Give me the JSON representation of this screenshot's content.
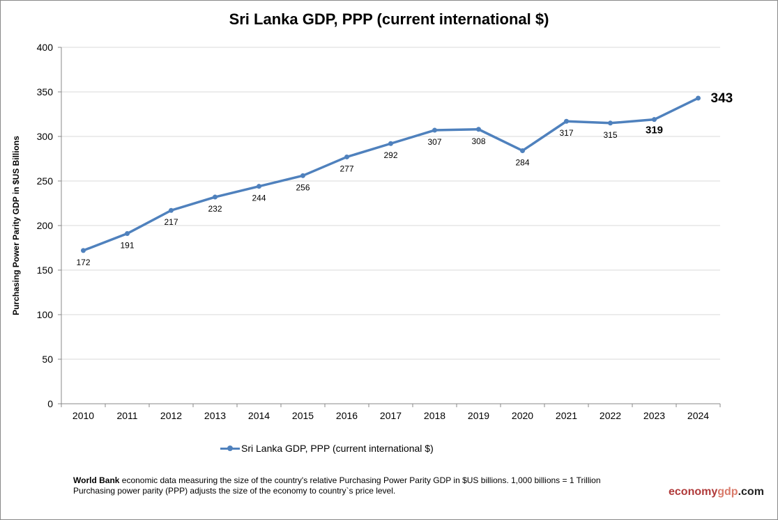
{
  "chart_data": {
    "type": "line",
    "title": "Sri Lanka GDP, PPP (current international $)",
    "ylabel": "Purchasing Power Parity GDP in $US Billions",
    "xlabel": "",
    "categories": [
      "2010",
      "2011",
      "2012",
      "2013",
      "2014",
      "2015",
      "2016",
      "2017",
      "2018",
      "2019",
      "2020",
      "2021",
      "2022",
      "2023",
      "2024"
    ],
    "series": [
      {
        "name": "Sri Lanka GDP, PPP (current international $)",
        "values": [
          172,
          191,
          217,
          232,
          244,
          256,
          277,
          292,
          307,
          308,
          284,
          317,
          315,
          319,
          343
        ],
        "color": "#4f81bd"
      }
    ],
    "ylim": [
      0,
      400
    ],
    "yticks": [
      0,
      50,
      100,
      150,
      200,
      250,
      300,
      350,
      400
    ],
    "grid": true,
    "legend": "bottom"
  },
  "footer": {
    "note_bold": "World Bank",
    "note_line1": " economic data  measuring the size of the country's relative  Purchasing Power Parity GDP in $US billions. 1,000 billions = 1 Trillion",
    "note_line2": "Purchasing power parity (PPP) adjusts the size of the economy to country`s price level.",
    "brand_a": "economy",
    "brand_b": "gdp",
    "brand_c": ".com"
  }
}
